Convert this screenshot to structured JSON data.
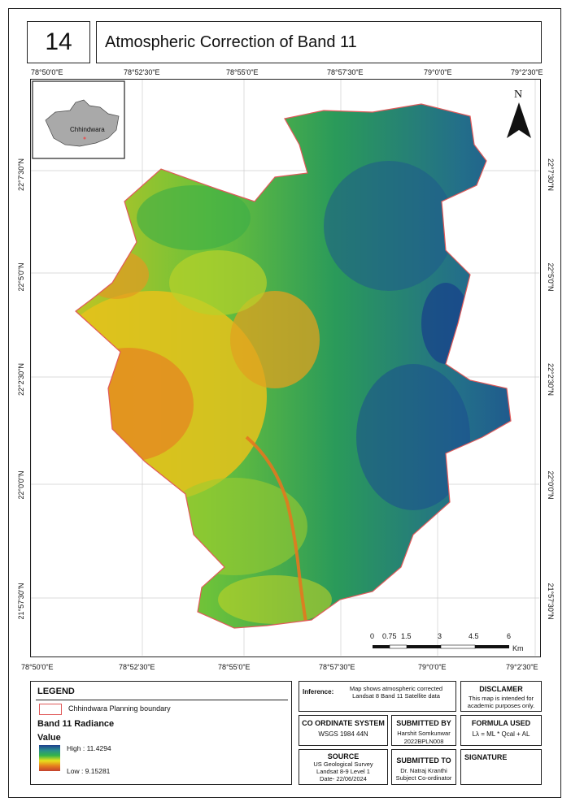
{
  "sheet_number": "14",
  "title": "Atmospheric Correction of Band 11",
  "longitudes": [
    "78°50'0\"E",
    "78°52'30\"E",
    "78°55'0\"E",
    "78°57'30\"E",
    "79°0'0\"E",
    "79°2'30\"E"
  ],
  "latitudes": [
    "22°7'30\"N",
    "22°5'0\"N",
    "22°2'30\"N",
    "22°0'0\"N",
    "21°57'30\"N"
  ],
  "north_label": "N",
  "inset_label": "Chhindwara",
  "scalebar": {
    "ticks": [
      "0",
      "0.75",
      "1.5",
      "3",
      "4.5",
      "6"
    ],
    "unit": "Km"
  },
  "legend": {
    "heading": "LEGEND",
    "boundary_label": "Chhindwara Planning boundary",
    "raster_title": "Band 11 Radiance",
    "value_label": "Value",
    "high_label": "High : 11.4294",
    "low_label": "Low : 9.15281",
    "boundary_color": "#e05a5a",
    "ramp_colors": [
      "#1d3f8f",
      "#2a8d8d",
      "#33b34a",
      "#e8e11b",
      "#e67f1e",
      "#c4402e"
    ]
  },
  "inference": {
    "label": "Inference:",
    "text": "Map shows atmospheric corrected Landsat 8 Band 11 Satellite data"
  },
  "disclaimer": {
    "heading": "DISCLAMER",
    "text": "This map is intended for academic purposes only."
  },
  "coordinate_system": {
    "heading": "CO ORDINATE SYSTEM",
    "value": "WSGS 1984 44N"
  },
  "submitted_by": {
    "heading": "SUBMITTED BY",
    "name": "Harshit Somkunwar",
    "id": "2022BPLN008"
  },
  "formula": {
    "heading": "FORMULA USED",
    "value": "Lλ = ML * Qcal + AL"
  },
  "source": {
    "heading": "SOURCE",
    "line1": "US Geological Survey",
    "line2": "Landsat 8-9 Level 1",
    "line3": "Date- 22/06/2024"
  },
  "submitted_to": {
    "heading": "SUBMITTED TO",
    "name": "Dr. Natraj Kranthi",
    "role": "Subject Co-ordinator"
  },
  "signature": {
    "heading": "SIGNATURE"
  }
}
